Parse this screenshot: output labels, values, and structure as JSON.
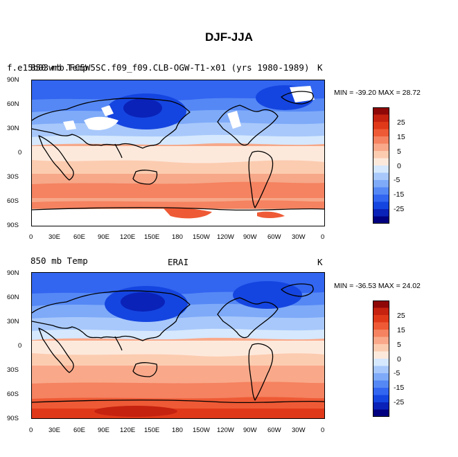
{
  "title": "DJF-JJA",
  "panels": [
    {
      "left_label": "850 mb Temp",
      "left_label_overlap": "f.e15b03wrb.FC5W5SC.f09_f09.CLB-OGW-T1-x01 (yrs 1980-1989)",
      "center_label": "",
      "right_label": "K",
      "min_max": "MIN = -39.20 MAX =  28.72"
    },
    {
      "left_label": "850 mb Temp",
      "center_label": "ERAI",
      "right_label": "K",
      "min_max": "MIN = -36.53 MAX =  24.02"
    }
  ],
  "lat_ticks": [
    "90N",
    "60N",
    "30N",
    "0",
    "30S",
    "60S",
    "90S"
  ],
  "lon_ticks": [
    "0",
    "30E",
    "60E",
    "90E",
    "120E",
    "150E",
    "180",
    "150W",
    "120W",
    "90W",
    "60W",
    "30W",
    "0"
  ],
  "colorbar": {
    "labels": [
      "25",
      "15",
      "5",
      "0",
      "-5",
      "-15",
      "-25"
    ],
    "levels": [
      -35,
      -30,
      -25,
      -20,
      -15,
      -10,
      -5,
      -2.5,
      0,
      2.5,
      5,
      10,
      15,
      20,
      25,
      30
    ],
    "colors": [
      "#000080",
      "#0a22b8",
      "#1545e0",
      "#3265f0",
      "#5588f5",
      "#7eaaf8",
      "#a8c8fb",
      "#d5e8fd",
      "#fde9dc",
      "#fcccb0",
      "#f9a98a",
      "#f58260",
      "#ee5a35",
      "#e0391a",
      "#c52210",
      "#8e0808"
    ]
  }
}
